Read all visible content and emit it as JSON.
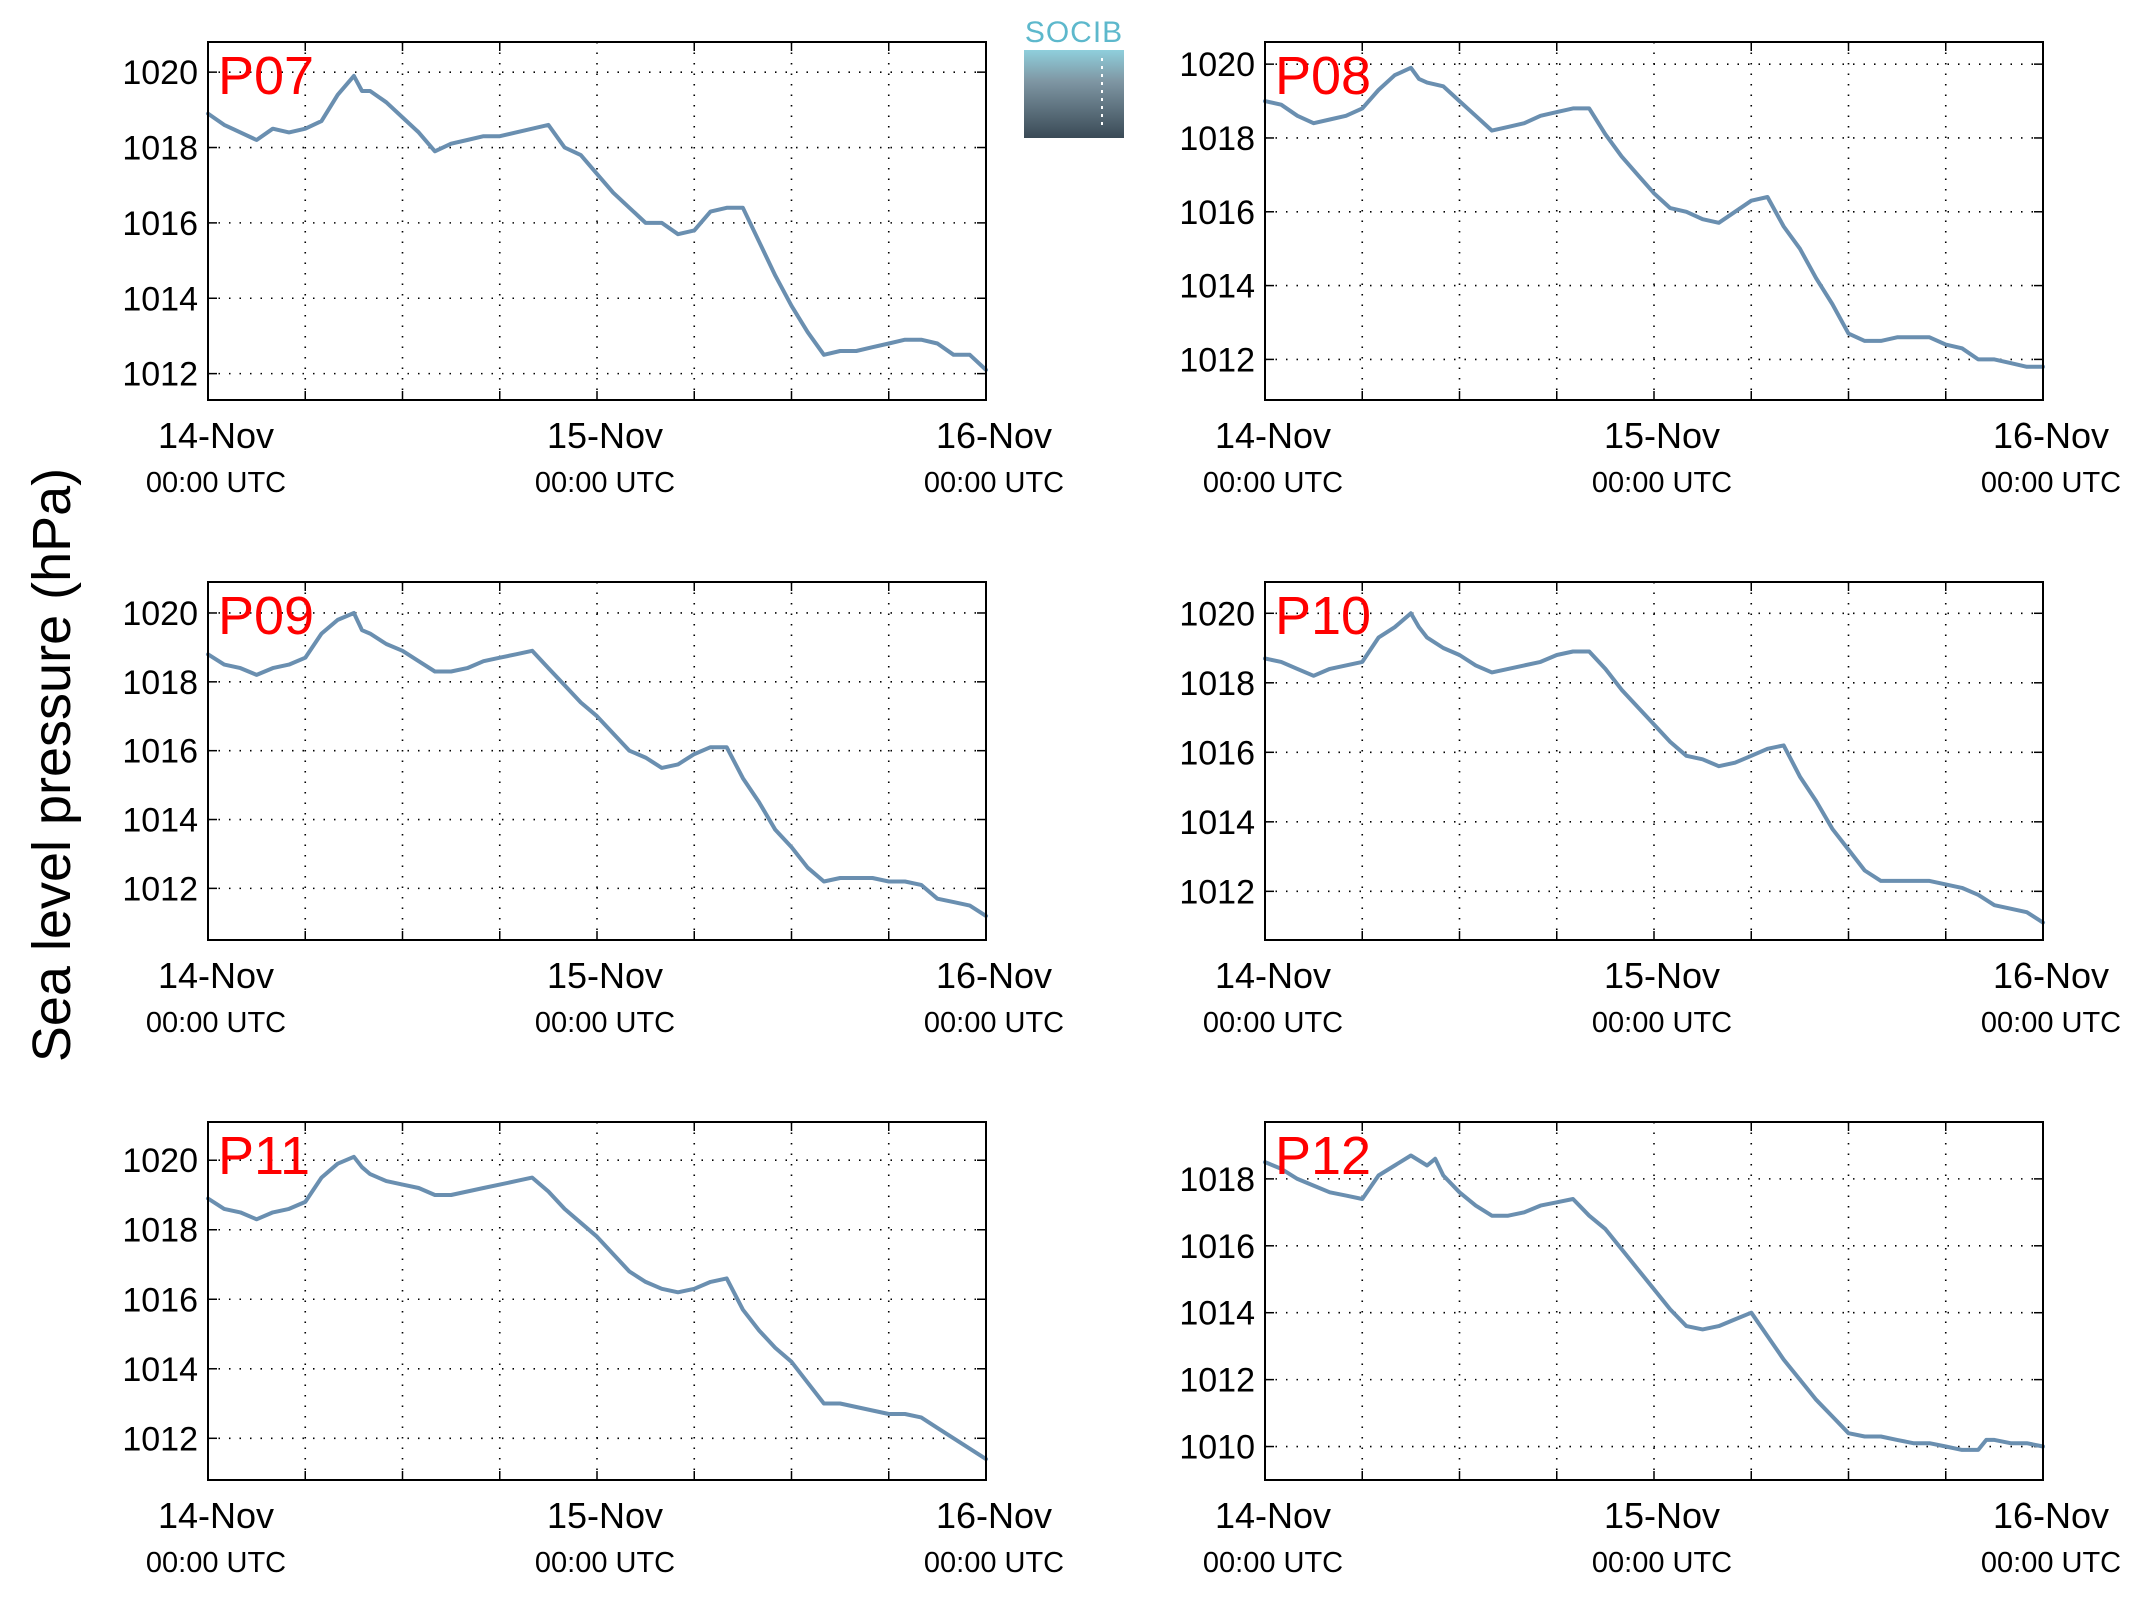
{
  "figure": {
    "ylabel": "Sea level pressure (hPa)",
    "logo_text": "SOCIB",
    "line_color": "#6a8fb0",
    "label_color": "#ff0000"
  },
  "chart_data": [
    {
      "type": "line",
      "panel": "P07",
      "xlim": [
        0,
        48
      ],
      "ylim": [
        1011.3,
        1020.8
      ],
      "yticks": [
        1012,
        1014,
        1016,
        1018,
        1020
      ],
      "xticks": [
        {
          "value": 0,
          "date": "14-Nov",
          "time": "00:00 UTC"
        },
        {
          "value": 24,
          "date": "15-Nov",
          "time": "00:00 UTC"
        },
        {
          "value": 48,
          "date": "16-Nov",
          "time": "00:00 UTC"
        }
      ],
      "minor_xticks": [
        6,
        12,
        18,
        30,
        36,
        42
      ],
      "grid": true,
      "x": [
        0,
        1,
        2,
        3,
        4,
        5,
        6,
        7,
        8,
        9,
        9.5,
        10,
        11,
        12,
        13,
        14,
        15,
        16,
        17,
        18,
        19,
        20,
        21,
        22,
        23,
        24,
        25,
        26,
        27,
        28,
        29,
        30,
        31,
        32,
        33,
        34,
        35,
        36,
        37,
        38,
        39,
        40,
        41,
        42,
        43,
        44,
        45,
        46,
        47,
        48
      ],
      "y": [
        1018.9,
        1018.6,
        1018.4,
        1018.2,
        1018.5,
        1018.4,
        1018.5,
        1018.7,
        1019.4,
        1019.9,
        1019.5,
        1019.5,
        1019.2,
        1018.8,
        1018.4,
        1017.9,
        1018.1,
        1018.2,
        1018.3,
        1018.3,
        1018.4,
        1018.5,
        1018.6,
        1018.0,
        1017.8,
        1017.3,
        1016.8,
        1016.4,
        1016.0,
        1016.0,
        1015.7,
        1015.8,
        1016.3,
        1016.4,
        1016.4,
        1015.5,
        1014.6,
        1013.8,
        1013.1,
        1012.5,
        1012.6,
        1012.6,
        1012.7,
        1012.8,
        1012.9,
        1012.9,
        1012.8,
        1012.5,
        1012.5,
        1012.1
      ]
    },
    {
      "type": "line",
      "panel": "P08",
      "xlim": [
        0,
        48
      ],
      "ylim": [
        1010.9,
        1020.6
      ],
      "yticks": [
        1012,
        1014,
        1016,
        1018,
        1020
      ],
      "xticks": [
        {
          "value": 0,
          "date": "14-Nov",
          "time": "00:00 UTC"
        },
        {
          "value": 24,
          "date": "15-Nov",
          "time": "00:00 UTC"
        },
        {
          "value": 48,
          "date": "16-Nov",
          "time": "00:00 UTC"
        }
      ],
      "minor_xticks": [
        6,
        12,
        18,
        30,
        36,
        42
      ],
      "grid": true,
      "x": [
        0,
        1,
        2,
        3,
        4,
        5,
        6,
        7,
        8,
        9,
        9.5,
        10,
        11,
        12,
        13,
        14,
        15,
        16,
        17,
        18,
        19,
        20,
        21,
        22,
        23,
        24,
        25,
        26,
        27,
        28,
        29,
        30,
        31,
        32,
        33,
        34,
        35,
        36,
        37,
        38,
        39,
        40,
        41,
        42,
        43,
        44,
        45,
        46,
        47,
        48
      ],
      "y": [
        1019.0,
        1018.9,
        1018.6,
        1018.4,
        1018.5,
        1018.6,
        1018.8,
        1019.3,
        1019.7,
        1019.9,
        1019.6,
        1019.5,
        1019.4,
        1019.0,
        1018.6,
        1018.2,
        1018.3,
        1018.4,
        1018.6,
        1018.7,
        1018.8,
        1018.8,
        1018.1,
        1017.5,
        1017.0,
        1016.5,
        1016.1,
        1016.0,
        1015.8,
        1015.7,
        1016.0,
        1016.3,
        1016.4,
        1015.6,
        1015.0,
        1014.2,
        1013.5,
        1012.7,
        1012.5,
        1012.5,
        1012.6,
        1012.6,
        1012.6,
        1012.4,
        1012.3,
        1012.0,
        1012.0,
        1011.9,
        1011.8,
        1011.8
      ]
    },
    {
      "type": "line",
      "panel": "P09",
      "xlim": [
        0,
        48
      ],
      "ylim": [
        1010.5,
        1020.9
      ],
      "yticks": [
        1012,
        1014,
        1016,
        1018,
        1020
      ],
      "xticks": [
        {
          "value": 0,
          "date": "14-Nov",
          "time": "00:00 UTC"
        },
        {
          "value": 24,
          "date": "15-Nov",
          "time": "00:00 UTC"
        },
        {
          "value": 48,
          "date": "16-Nov",
          "time": "00:00 UTC"
        }
      ],
      "minor_xticks": [
        6,
        12,
        18,
        30,
        36,
        42
      ],
      "grid": true,
      "x": [
        0,
        1,
        2,
        3,
        4,
        5,
        6,
        7,
        8,
        9,
        9.5,
        10,
        11,
        12,
        13,
        14,
        15,
        16,
        17,
        18,
        19,
        20,
        21,
        22,
        23,
        24,
        25,
        26,
        27,
        28,
        29,
        30,
        31,
        32,
        33,
        34,
        35,
        36,
        37,
        38,
        39,
        40,
        41,
        42,
        43,
        44,
        45,
        46,
        47,
        48
      ],
      "y": [
        1018.8,
        1018.5,
        1018.4,
        1018.2,
        1018.4,
        1018.5,
        1018.7,
        1019.4,
        1019.8,
        1020.0,
        1019.5,
        1019.4,
        1019.1,
        1018.9,
        1018.6,
        1018.3,
        1018.3,
        1018.4,
        1018.6,
        1018.7,
        1018.8,
        1018.9,
        1018.4,
        1017.9,
        1017.4,
        1017.0,
        1016.5,
        1016.0,
        1015.8,
        1015.5,
        1015.6,
        1015.9,
        1016.1,
        1016.1,
        1015.2,
        1014.5,
        1013.7,
        1013.2,
        1012.6,
        1012.2,
        1012.3,
        1012.3,
        1012.3,
        1012.2,
        1012.2,
        1012.1,
        1011.7,
        1011.6,
        1011.5,
        1011.2
      ]
    },
    {
      "type": "line",
      "panel": "P10",
      "xlim": [
        0,
        48
      ],
      "ylim": [
        1010.6,
        1020.9
      ],
      "yticks": [
        1012,
        1014,
        1016,
        1018,
        1020
      ],
      "xticks": [
        {
          "value": 0,
          "date": "14-Nov",
          "time": "00:00 UTC"
        },
        {
          "value": 24,
          "date": "15-Nov",
          "time": "00:00 UTC"
        },
        {
          "value": 48,
          "date": "16-Nov",
          "time": "00:00 UTC"
        }
      ],
      "minor_xticks": [
        6,
        12,
        18,
        30,
        36,
        42
      ],
      "grid": true,
      "x": [
        0,
        1,
        2,
        3,
        4,
        5,
        6,
        7,
        8,
        9,
        9.5,
        10,
        11,
        12,
        13,
        14,
        15,
        16,
        17,
        18,
        19,
        20,
        21,
        22,
        23,
        24,
        25,
        26,
        27,
        28,
        29,
        30,
        31,
        32,
        33,
        34,
        35,
        36,
        37,
        38,
        39,
        40,
        41,
        42,
        43,
        44,
        45,
        46,
        47,
        48
      ],
      "y": [
        1018.7,
        1018.6,
        1018.4,
        1018.2,
        1018.4,
        1018.5,
        1018.6,
        1019.3,
        1019.6,
        1020.0,
        1019.6,
        1019.3,
        1019.0,
        1018.8,
        1018.5,
        1018.3,
        1018.4,
        1018.5,
        1018.6,
        1018.8,
        1018.9,
        1018.9,
        1018.4,
        1017.8,
        1017.3,
        1016.8,
        1016.3,
        1015.9,
        1015.8,
        1015.6,
        1015.7,
        1015.9,
        1016.1,
        1016.2,
        1015.3,
        1014.6,
        1013.8,
        1013.2,
        1012.6,
        1012.3,
        1012.3,
        1012.3,
        1012.3,
        1012.2,
        1012.1,
        1011.9,
        1011.6,
        1011.5,
        1011.4,
        1011.1
      ]
    },
    {
      "type": "line",
      "panel": "P11",
      "xlim": [
        0,
        48
      ],
      "ylim": [
        1010.8,
        1021.1
      ],
      "yticks": [
        1012,
        1014,
        1016,
        1018,
        1020
      ],
      "xticks": [
        {
          "value": 0,
          "date": "14-Nov",
          "time": "00:00 UTC"
        },
        {
          "value": 24,
          "date": "15-Nov",
          "time": "00:00 UTC"
        },
        {
          "value": 48,
          "date": "16-Nov",
          "time": "00:00 UTC"
        }
      ],
      "minor_xticks": [
        6,
        12,
        18,
        30,
        36,
        42
      ],
      "grid": true,
      "x": [
        0,
        1,
        2,
        3,
        4,
        5,
        6,
        7,
        8,
        9,
        9.5,
        10,
        11,
        12,
        13,
        14,
        15,
        16,
        17,
        18,
        19,
        20,
        21,
        22,
        23,
        24,
        25,
        26,
        27,
        28,
        29,
        30,
        31,
        32,
        33,
        34,
        35,
        36,
        37,
        38,
        39,
        40,
        41,
        42,
        43,
        44,
        45,
        46,
        47,
        48
      ],
      "y": [
        1018.9,
        1018.6,
        1018.5,
        1018.3,
        1018.5,
        1018.6,
        1018.8,
        1019.5,
        1019.9,
        1020.1,
        1019.8,
        1019.6,
        1019.4,
        1019.3,
        1019.2,
        1019.0,
        1019.0,
        1019.1,
        1019.2,
        1019.3,
        1019.4,
        1019.5,
        1019.1,
        1018.6,
        1018.2,
        1017.8,
        1017.3,
        1016.8,
        1016.5,
        1016.3,
        1016.2,
        1016.3,
        1016.5,
        1016.6,
        1015.7,
        1015.1,
        1014.6,
        1014.2,
        1013.6,
        1013.0,
        1013.0,
        1012.9,
        1012.8,
        1012.7,
        1012.7,
        1012.6,
        1012.3,
        1012.0,
        1011.7,
        1011.4
      ]
    },
    {
      "type": "line",
      "panel": "P12",
      "xlim": [
        0,
        48
      ],
      "ylim": [
        1009.0,
        1019.7
      ],
      "yticks": [
        1010,
        1012,
        1014,
        1016,
        1018
      ],
      "xticks": [
        {
          "value": 0,
          "date": "14-Nov",
          "time": "00:00 UTC"
        },
        {
          "value": 24,
          "date": "15-Nov",
          "time": "00:00 UTC"
        },
        {
          "value": 48,
          "date": "16-Nov",
          "time": "00:00 UTC"
        }
      ],
      "minor_xticks": [
        6,
        12,
        18,
        30,
        36,
        42
      ],
      "grid": true,
      "x": [
        0,
        1,
        2,
        3,
        4,
        5,
        6,
        7,
        8,
        9,
        10,
        10.5,
        11,
        12,
        13,
        14,
        15,
        16,
        17,
        18,
        19,
        20,
        21,
        22,
        23,
        24,
        25,
        26,
        27,
        28,
        29,
        30,
        31,
        32,
        33,
        34,
        35,
        36,
        37,
        38,
        39,
        40,
        41,
        42,
        43,
        44,
        44.5,
        45,
        46,
        47,
        48
      ],
      "y": [
        1018.5,
        1018.3,
        1018.0,
        1017.8,
        1017.6,
        1017.5,
        1017.4,
        1018.1,
        1018.4,
        1018.7,
        1018.4,
        1018.6,
        1018.1,
        1017.6,
        1017.2,
        1016.9,
        1016.9,
        1017.0,
        1017.2,
        1017.3,
        1017.4,
        1016.9,
        1016.5,
        1015.9,
        1015.3,
        1014.7,
        1014.1,
        1013.6,
        1013.5,
        1013.6,
        1013.8,
        1014.0,
        1013.3,
        1012.6,
        1012.0,
        1011.4,
        1010.9,
        1010.4,
        1010.3,
        1010.3,
        1010.2,
        1010.1,
        1010.1,
        1010.0,
        1009.9,
        1009.9,
        1010.2,
        1010.2,
        1010.1,
        1010.1,
        1010.0
      ]
    }
  ]
}
